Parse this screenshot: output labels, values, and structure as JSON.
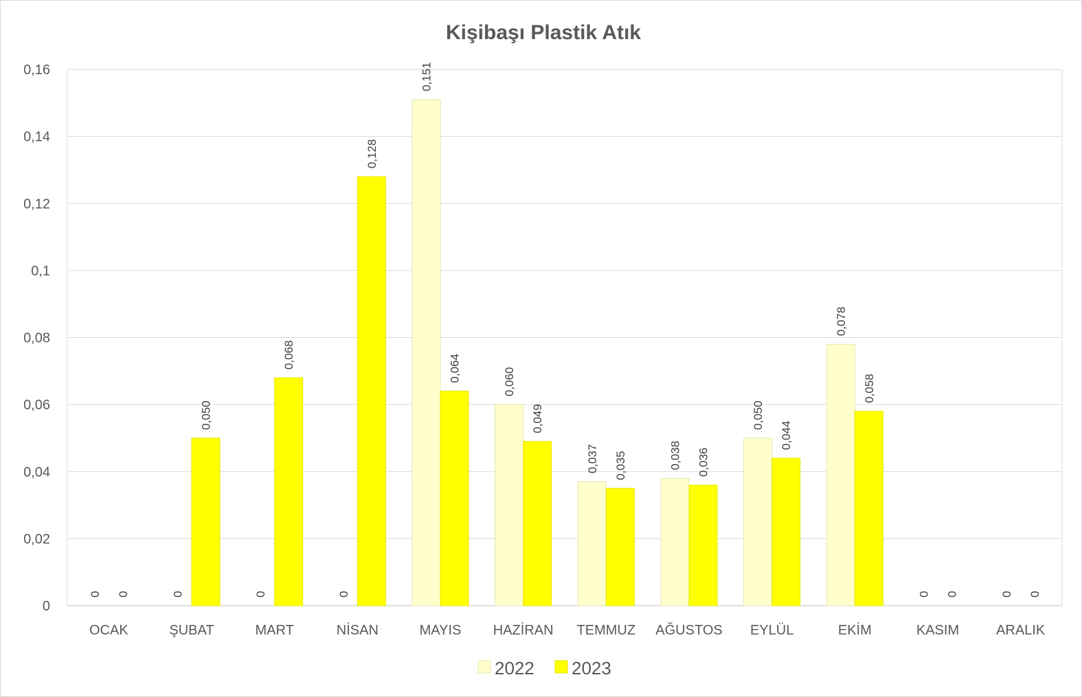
{
  "chart_data": {
    "type": "bar",
    "title": "Kişibaşı Plastik Atık",
    "xlabel": "",
    "ylabel": "",
    "categories": [
      "OCAK",
      "ŞUBAT",
      "MART",
      "NİSAN",
      "MAYIS",
      "HAZİRAN",
      "TEMMUZ",
      "AĞUSTOS",
      "EYLÜL",
      "EKİM",
      "KASIM",
      "ARALIK"
    ],
    "series": [
      {
        "name": "2022",
        "color": "#ffffcc",
        "stroke": "#e6e6b3",
        "values": [
          0,
          0,
          0,
          0,
          0.151,
          0.06,
          0.037,
          0.038,
          0.05,
          0.078,
          0,
          0
        ],
        "labels": [
          "0",
          "0",
          "0",
          "0",
          "0,151",
          "0,060",
          "0,037",
          "0,038",
          "0,050",
          "0,078",
          "0",
          "0"
        ]
      },
      {
        "name": "2023",
        "color": "#ffff00",
        "stroke": "#e6e600",
        "values": [
          0,
          0.05,
          0.068,
          0.128,
          0.064,
          0.049,
          0.035,
          0.036,
          0.044,
          0.058,
          0,
          0
        ],
        "labels": [
          "0",
          "0,050",
          "0,068",
          "0,128",
          "0,064",
          "0,049",
          "0,035",
          "0,036",
          "0,044",
          "0,058",
          "0",
          "0"
        ]
      }
    ],
    "ylim": [
      0,
      0.16
    ],
    "yticks": [
      0,
      0.02,
      0.04,
      0.06,
      0.08,
      0.1,
      0.12,
      0.14,
      0.16
    ],
    "ytick_labels": [
      "0",
      "0,02",
      "0,04",
      "0,06",
      "0,08",
      "0,1",
      "0,12",
      "0,14",
      "0,16"
    ],
    "grid": true,
    "legend_position": "bottom"
  }
}
